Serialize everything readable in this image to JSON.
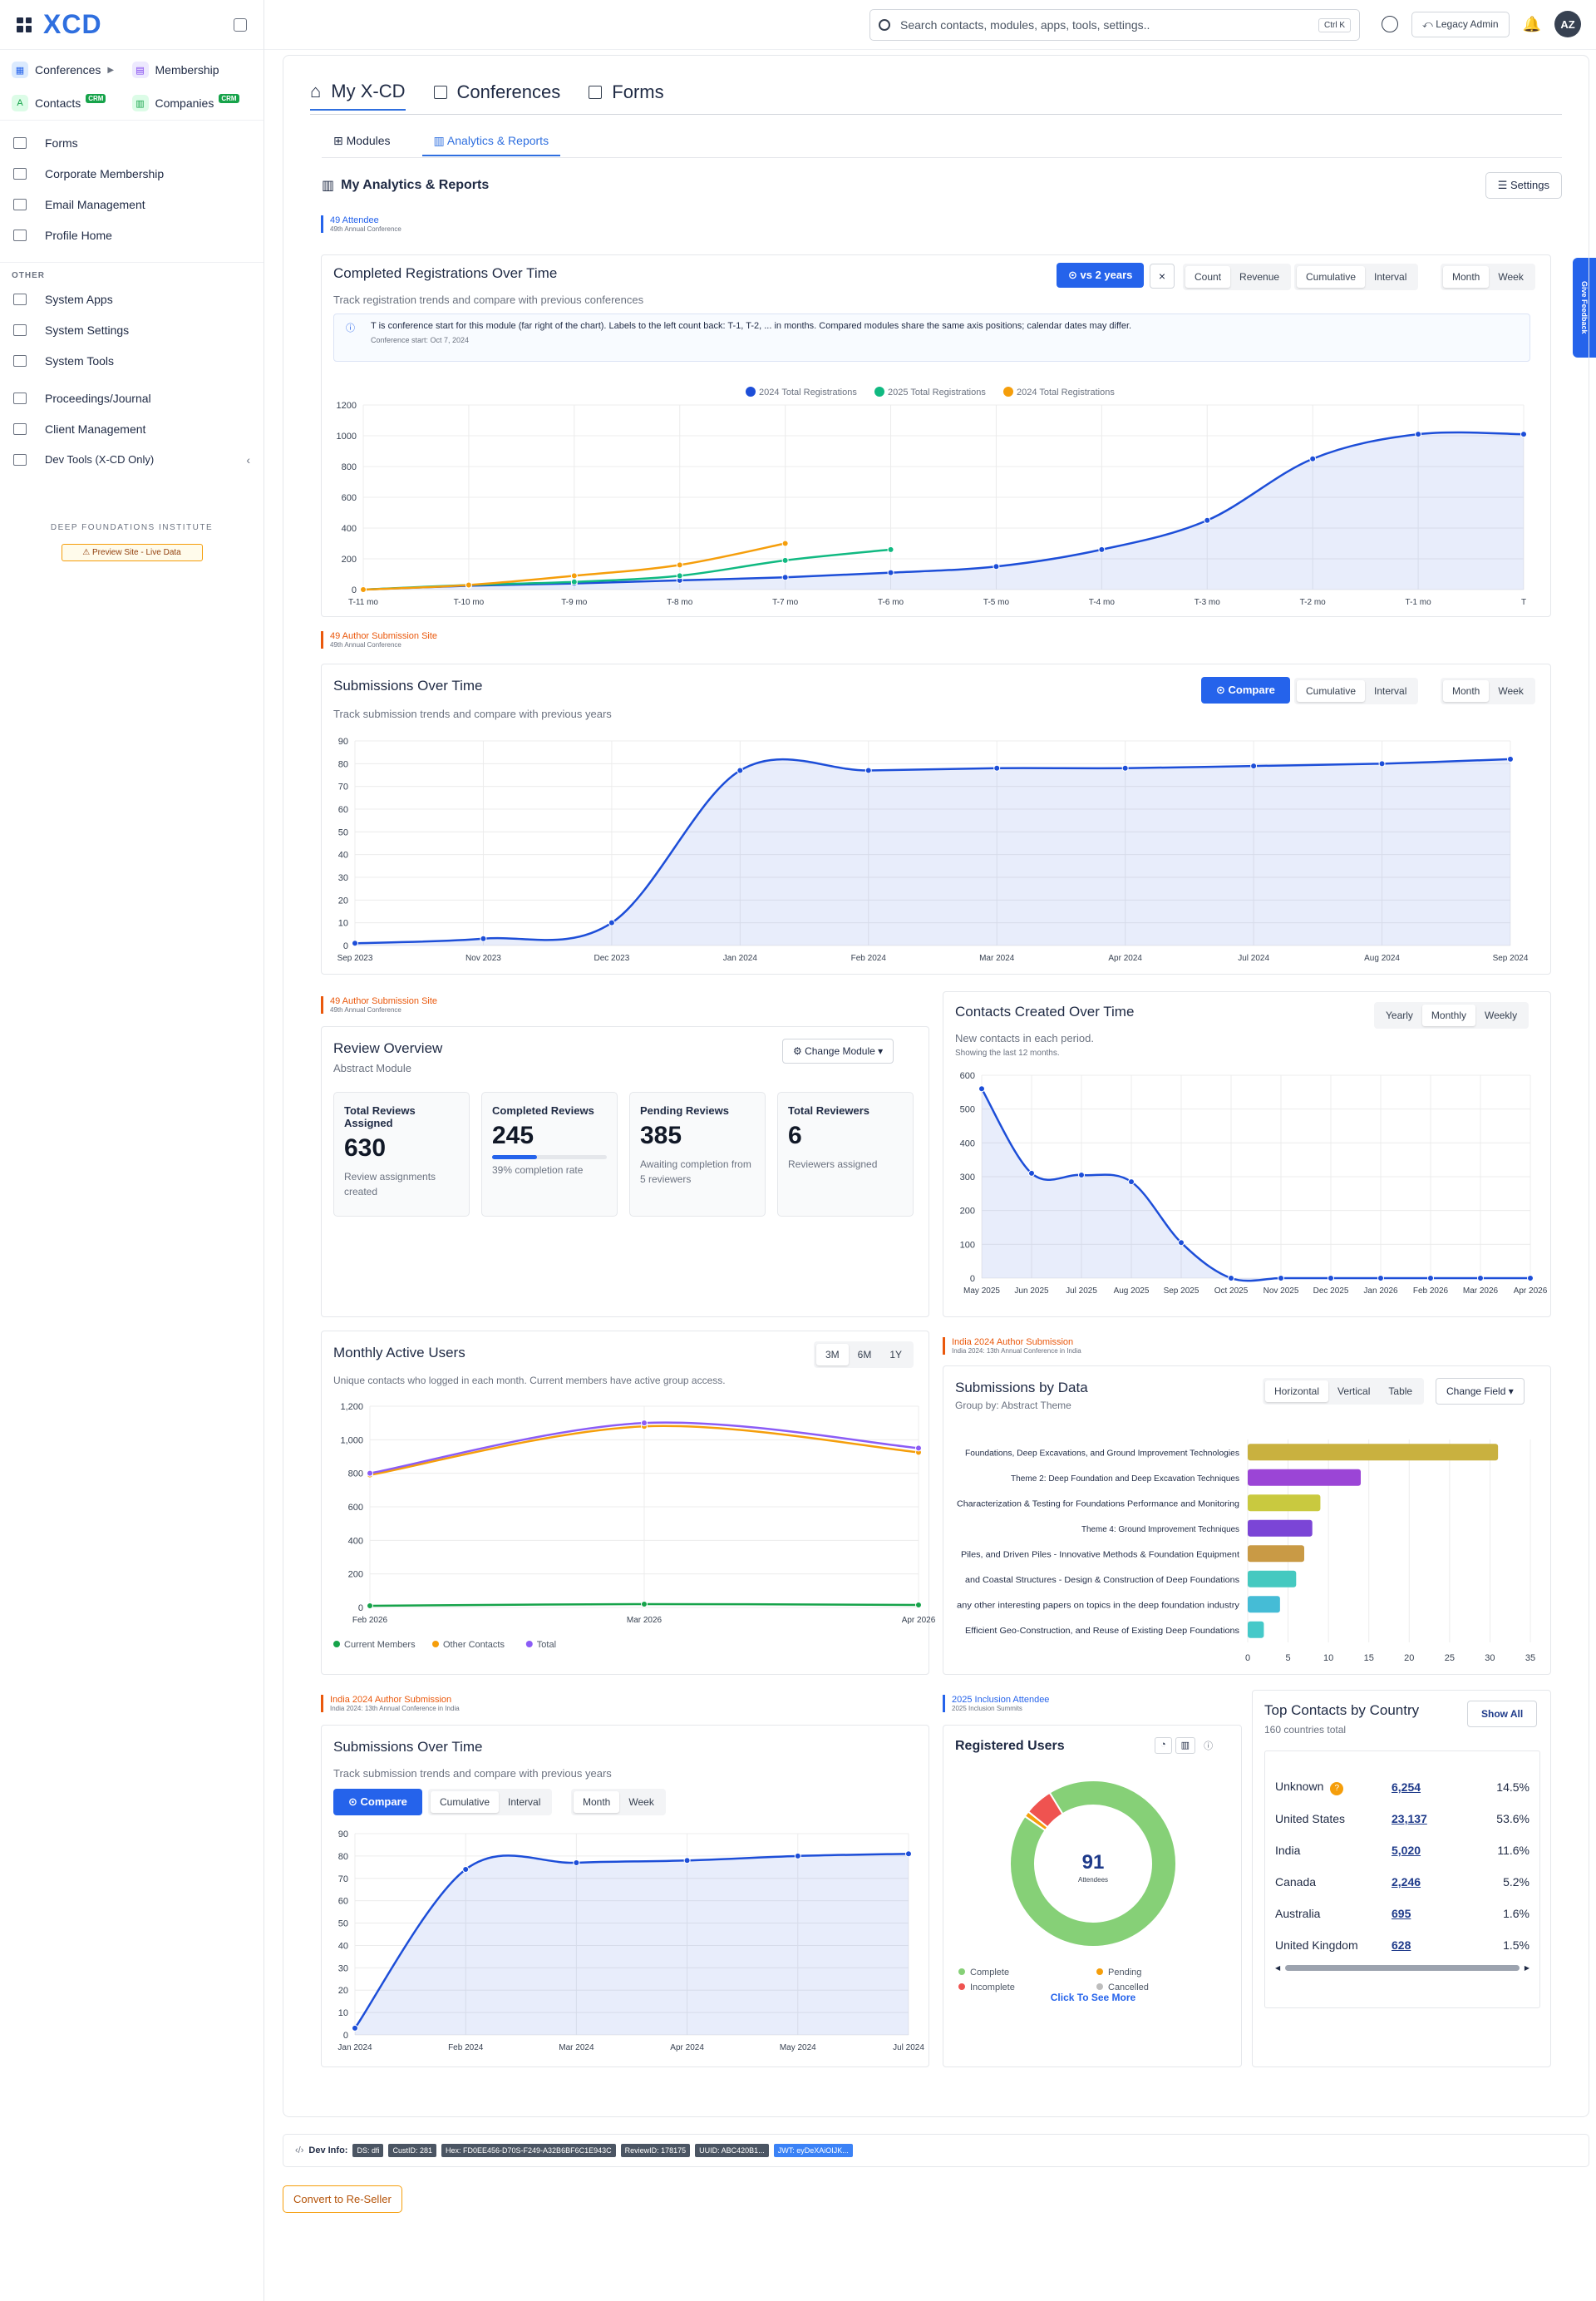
{
  "app": {
    "logo": "XCD"
  },
  "sidebar": {
    "modules": [
      {
        "label": "Conferences",
        "color": "#dbeafe",
        "badge": ""
      },
      {
        "label": "Membership",
        "color": "#ede9fe",
        "badge": ""
      },
      {
        "label": "Contacts",
        "color": "#dcfce7",
        "badge": "CRM"
      },
      {
        "label": "Companies",
        "color": "#dcfce7",
        "badge": "CRM"
      }
    ],
    "items": [
      {
        "label": "Forms"
      },
      {
        "label": "Corporate Membership"
      },
      {
        "label": "Email Management"
      },
      {
        "label": "Profile Home"
      }
    ],
    "other_label": "OTHER",
    "other_items": [
      {
        "label": "System Apps"
      },
      {
        "label": "System Settings"
      },
      {
        "label": "System Tools"
      },
      {
        "label": "Proceedings/Journal"
      },
      {
        "label": "Client Management"
      },
      {
        "label": "Dev Tools (X-CD Only)"
      }
    ],
    "org_name": "DEEP FOUNDATIONS INSTITUTE",
    "preview_label": "Preview Site - Live Data"
  },
  "header": {
    "search_placeholder": "Search contacts, modules, apps, tools, settings..",
    "shortcut": "Ctrl K",
    "legacy": "Legacy Admin",
    "avatar": "AZ"
  },
  "tabs": [
    "My X-CD",
    "Conferences",
    "Forms"
  ],
  "subtabs": [
    "Modules",
    "Analytics & Reports"
  ],
  "section_title": "My Analytics & Reports",
  "settings_label": "Settings",
  "feedback_label": "Give Feedback",
  "registrations": {
    "tag": "49 Attendee",
    "tag_sub": "49th Annual Conference",
    "title": "Completed Registrations Over Time",
    "desc": "Track registration trends and compare with previous conferences",
    "compare_btn": "vs 2 years",
    "controls": [
      "Count",
      "Revenue",
      "Cumulative",
      "Interval",
      "Month",
      "Week"
    ],
    "info": "T is conference start for this module (far right of the chart). Labels to the left count back: T-1, T-2, ... in months. Compared modules share the same axis positions; calendar dates may differ.",
    "info_sub": "Conference start: Oct 7, 2024"
  },
  "submissions": {
    "tag": "49 Author Submission Site",
    "tag_sub": "49th Annual Conference",
    "title": "Submissions Over Time",
    "desc": "Track submission trends and compare with previous years",
    "compare_btn": "Compare",
    "controls": [
      "Cumulative",
      "Interval",
      "Month",
      "Week"
    ]
  },
  "review": {
    "tag": "49 Author Submission Site",
    "tag_sub": "49th Annual Conference",
    "title": "Review Overview",
    "subtitle": "Abstract Module",
    "change_btn": "Change Module",
    "stats": [
      {
        "label": "Total Reviews Assigned",
        "value": "630",
        "note": "Review assignments created"
      },
      {
        "label": "Completed Reviews",
        "value": "245",
        "note": "39% completion rate",
        "progress": 0.39
      },
      {
        "label": "Pending Reviews",
        "value": "385",
        "note": "Awaiting completion from 5 reviewers"
      },
      {
        "label": "Total Reviewers",
        "value": "6",
        "note": "Reviewers assigned"
      }
    ]
  },
  "contacts": {
    "title": "Contacts Created Over Time",
    "desc": "New contacts in each period.",
    "sub": "Showing the last 12 months.",
    "controls": [
      "Yearly",
      "Monthly",
      "Weekly"
    ]
  },
  "mau": {
    "title": "Monthly Active Users",
    "desc": "Unique contacts who logged in each month. Current members have active group access.",
    "controls": [
      "3M",
      "6M",
      "1Y"
    ]
  },
  "sbd": {
    "tag": "India 2024 Author Submission",
    "tag_sub": "India 2024: 13th Annual Conference in India",
    "title": "Submissions by Data",
    "subtitle": "Group by: Abstract Theme",
    "controls": [
      "Horizontal",
      "Vertical",
      "Table"
    ],
    "change_btn": "Change Field"
  },
  "india_sub": {
    "tag": "India 2024 Author Submission",
    "tag_sub": "India 2024: 13th Annual Conference in India",
    "title": "Submissions Over Time",
    "desc": "Track submission trends and compare with previous years",
    "compare_btn": "Compare",
    "controls": [
      "Cumulative",
      "Interval",
      "Month",
      "Week"
    ]
  },
  "registered": {
    "tag": "2025 Inclusion Attendee",
    "tag_sub": "2025 Inclusion Summits",
    "title": "Registered Users",
    "center_value": "91",
    "center_label": "Attendees",
    "legend": [
      "Complete",
      "Pending",
      "Incomplete",
      "Cancelled"
    ],
    "link": "Click To See More"
  },
  "countries": {
    "title": "Top Contacts by Country",
    "subtitle": "160 countries total",
    "show_all": "Show All",
    "rows": [
      {
        "name": "Unknown",
        "count": "6,254",
        "pct": "14.5%"
      },
      {
        "name": "United States",
        "count": "23,137",
        "pct": "53.6%"
      },
      {
        "name": "India",
        "count": "5,020",
        "pct": "11.6%"
      },
      {
        "name": "Canada",
        "count": "2,246",
        "pct": "5.2%"
      },
      {
        "name": "Australia",
        "count": "695",
        "pct": "1.6%"
      },
      {
        "name": "United Kingdom",
        "count": "628",
        "pct": "1.5%"
      }
    ]
  },
  "dev_info": {
    "label": "Dev Info:",
    "chips": [
      "DS: dfi",
      "CustID: 281",
      "Hex: FD0EE456-D70S-F249-A32B6BF6C1E943C",
      "ReviewID: 178175",
      "UUID: ABC420B1...",
      "JWT: eyDeXAiOIJK..."
    ]
  },
  "reseller_label": "Convert to Re-Seller",
  "chart_data": [
    {
      "type": "line",
      "title": "Completed Registrations Over Time",
      "categories": [
        "T-11 mo",
        "T-10 mo",
        "T-9 mo",
        "T-8 mo",
        "T-7 mo",
        "T-6 mo",
        "T-5 mo",
        "T-4 mo",
        "T-3 mo",
        "T-2 mo",
        "T-1 mo",
        "T"
      ],
      "ylim": [
        0,
        1200
      ],
      "yticks": [
        0,
        200,
        400,
        600,
        800,
        1000,
        1200
      ],
      "series": [
        {
          "name": "2024 Total Registrations",
          "color": "#1d4ed8",
          "values": [
            0,
            25,
            40,
            60,
            80,
            110,
            150,
            260,
            450,
            850,
            1010,
            1010
          ]
        },
        {
          "name": "2025 Total Registrations",
          "color": "#10b981",
          "values": [
            0,
            30,
            50,
            90,
            190,
            260,
            null,
            null,
            null,
            null,
            null,
            null
          ]
        },
        {
          "name": "2024 Total Registrations",
          "color": "#f59e0b",
          "values": [
            0,
            30,
            90,
            160,
            300,
            null,
            null,
            null,
            null,
            null,
            null,
            null
          ]
        }
      ]
    },
    {
      "type": "line",
      "title": "Submissions Over Time",
      "categories": [
        "Sep 2023",
        "Nov 2023",
        "Dec 2023",
        "Jan 2024",
        "Feb 2024",
        "Mar 2024",
        "Apr 2024",
        "Jul 2024",
        "Aug 2024",
        "Sep 2024"
      ],
      "ylim": [
        0,
        90
      ],
      "yticks": [
        0,
        10,
        20,
        30,
        40,
        50,
        60,
        70,
        80,
        90
      ],
      "series": [
        {
          "name": "",
          "color": "#1d4ed8",
          "values": [
            1,
            3,
            10,
            77,
            77,
            78,
            78,
            79,
            80,
            82
          ]
        }
      ]
    },
    {
      "type": "line",
      "title": "Contacts Created Over Time",
      "categories": [
        "May 2025",
        "Jun 2025",
        "Jul 2025",
        "Aug 2025",
        "Sep 2025",
        "Oct 2025",
        "Nov 2025",
        "Dec 2025",
        "Jan 2026",
        "Feb 2026",
        "Mar 2026",
        "Apr 2026"
      ],
      "ylim": [
        0,
        600
      ],
      "yticks": [
        0,
        100,
        200,
        300,
        400,
        500,
        600
      ],
      "series": [
        {
          "name": "",
          "color": "#1d4ed8",
          "values": [
            560,
            310,
            305,
            285,
            105,
            0,
            0,
            0,
            0,
            0,
            0,
            0
          ]
        }
      ]
    },
    {
      "type": "line",
      "title": "Monthly Active Users",
      "categories": [
        "Feb 2026",
        "Mar 2026",
        "Apr 2026"
      ],
      "ylim": [
        0,
        1200
      ],
      "yticks": [
        0,
        200,
        400,
        600,
        800,
        1000,
        1200
      ],
      "ytick_labels": [
        "0",
        "200",
        "400",
        "600",
        "800",
        "1,000",
        "1,200"
      ],
      "series": [
        {
          "name": "Current Members",
          "color": "#16a34a",
          "values": [
            10,
            20,
            15
          ]
        },
        {
          "name": "Other Contacts",
          "color": "#f59e0b",
          "values": [
            790,
            1080,
            925
          ]
        },
        {
          "name": "Total",
          "color": "#8b5cf6",
          "values": [
            800,
            1100,
            950
          ]
        }
      ],
      "legend": [
        "Current Members",
        "Other Contacts",
        "Total"
      ]
    },
    {
      "type": "bar",
      "orientation": "horizontal",
      "title": "Submissions by Data",
      "categories": [
        "Foundations, Deep Excavations, and Ground Improvement Technologies",
        "Theme 2: Deep Foundation and Deep Excavation Techniques",
        "Characterization & Testing for Foundations Performance and Monitoring",
        "Theme 4: Ground Improvement Techniques",
        "Piles, and Driven Piles - Innovative Methods & Foundation Equipment",
        "and Coastal Structures - Design & Construction of Deep Foundations",
        "any other interesting papers on topics in the deep foundation industry",
        "Efficient Geo-Construction, and Reuse of Existing Deep Foundations"
      ],
      "values": [
        31,
        14,
        9,
        8,
        7,
        6,
        4,
        2
      ],
      "colors": [
        "#c9b13f",
        "#9b45d6",
        "#c9c93f",
        "#7b45d6",
        "#c99a45",
        "#45c9c0",
        "#45bcd6",
        "#45c9c9"
      ],
      "xlim": [
        0,
        35
      ],
      "xticks": [
        0,
        5,
        10,
        15,
        20,
        25,
        30,
        35
      ]
    },
    {
      "type": "line",
      "title": "Submissions Over Time",
      "categories": [
        "Jan 2024",
        "Feb 2024",
        "Mar 2024",
        "Apr 2024",
        "May 2024",
        "Jul 2024"
      ],
      "ylim": [
        0,
        90
      ],
      "yticks": [
        0,
        10,
        20,
        30,
        40,
        50,
        60,
        70,
        80,
        90
      ],
      "series": [
        {
          "name": "",
          "color": "#1d4ed8",
          "values": [
            3,
            74,
            77,
            78,
            80,
            81
          ]
        }
      ]
    },
    {
      "type": "pie",
      "title": "Registered Users",
      "categories": [
        "Complete",
        "Pending",
        "Incomplete",
        "Cancelled"
      ],
      "values": [
        85,
        1,
        5,
        0
      ],
      "colors": [
        "#86d077",
        "#f59e0b",
        "#ef5350",
        "#bdbdbd"
      ]
    }
  ]
}
